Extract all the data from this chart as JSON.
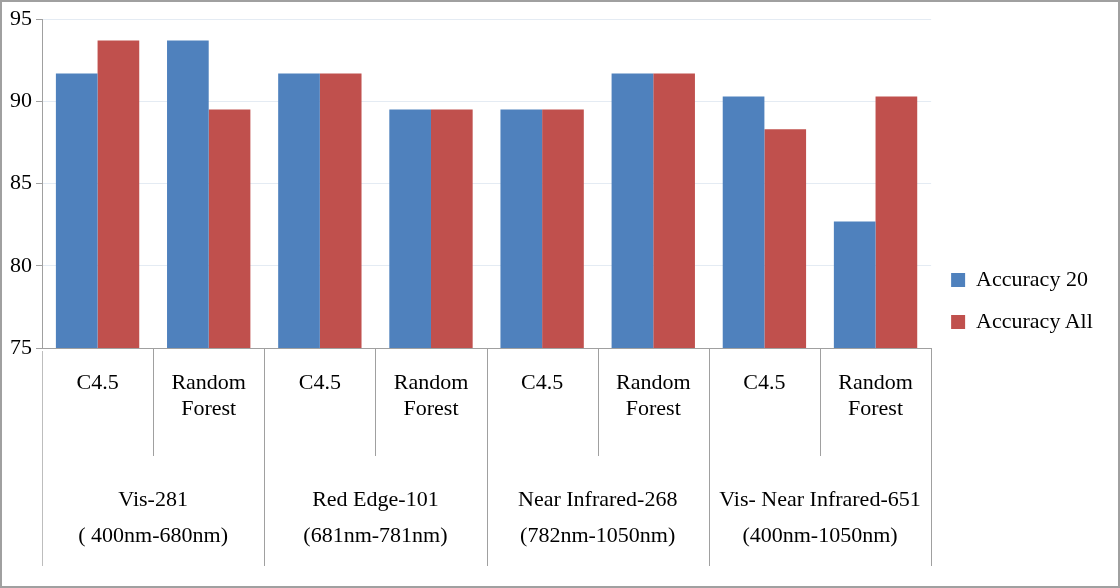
{
  "chart_data": {
    "type": "bar",
    "categories": [
      "C4.5",
      "Random Forest",
      "C4.5",
      "Random Forest",
      "C4.5",
      "Random Forest",
      "C4.5",
      "Random Forest"
    ],
    "series": [
      {
        "name": "Accuracy 20",
        "color": "#4f81bd",
        "values": [
          91.7,
          93.7,
          91.7,
          89.5,
          89.5,
          91.7,
          90.3,
          82.7
        ]
      },
      {
        "name": "Accuracy All",
        "color": "#c0504d",
        "values": [
          93.7,
          89.5,
          91.7,
          89.5,
          89.5,
          91.7,
          88.3,
          90.3
        ]
      }
    ],
    "annotations": [
      "Vis-281\n( 400nm-680nm)",
      "Red Edge-101\n(681nm-781nm)",
      "Near Infrared-268\n(782nm-1050nm)",
      "Vis- Near Infrared-651\n(400nm-1050nm)"
    ],
    "ylim": [
      75,
      95
    ],
    "yticks": [
      75,
      80,
      85,
      90,
      95
    ],
    "grid": "y",
    "legend": "right"
  }
}
